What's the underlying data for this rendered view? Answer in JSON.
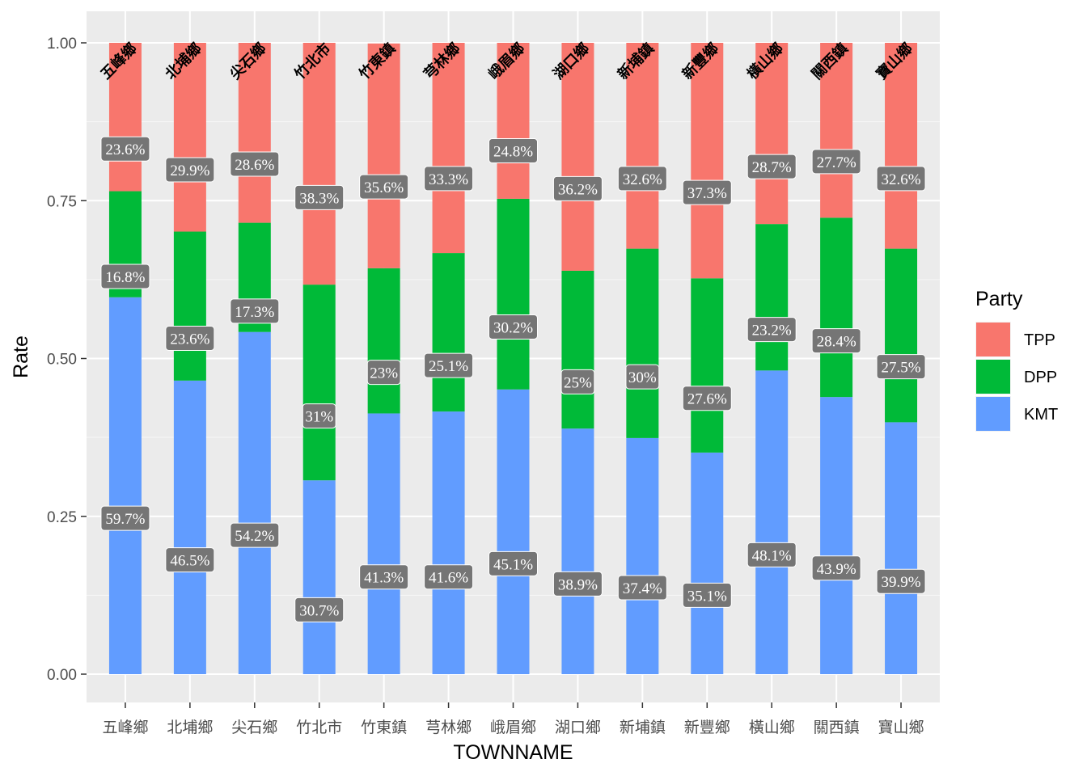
{
  "colors": {
    "panel_bg": "#ebebeb",
    "grid_major": "#ffffff",
    "label_box": "#757575",
    "TPP": "#f8766d",
    "DPP": "#00ba38",
    "KMT": "#619cff"
  },
  "chart_data": {
    "type": "bar",
    "stacked": true,
    "xlabel": "TOWNNAME",
    "ylabel": "Rate",
    "ylim": [
      0,
      1
    ],
    "yticks": [
      "0.00",
      "0.25",
      "0.50",
      "0.75",
      "1.00"
    ],
    "grid": true,
    "legend": {
      "title": "Party",
      "position": "right",
      "entries": [
        "TPP",
        "DPP",
        "KMT"
      ]
    },
    "categories": [
      "五峰鄉",
      "北埔鄉",
      "尖石鄉",
      "竹北市",
      "竹東鎮",
      "芎林鄉",
      "峨眉鄉",
      "湖口鄉",
      "新埔鎮",
      "新豐鄉",
      "橫山鄉",
      "關西鎮",
      "寶山鄉"
    ],
    "series": [
      {
        "name": "KMT",
        "values": [
          0.597,
          0.465,
          0.542,
          0.307,
          0.413,
          0.416,
          0.451,
          0.389,
          0.374,
          0.351,
          0.481,
          0.439,
          0.399
        ],
        "labels": [
          "59.7%",
          "46.5%",
          "54.2%",
          "30.7%",
          "41.3%",
          "41.6%",
          "45.1%",
          "38.9%",
          "37.4%",
          "35.1%",
          "48.1%",
          "43.9%",
          "39.9%"
        ]
      },
      {
        "name": "DPP",
        "values": [
          0.168,
          0.236,
          0.173,
          0.31,
          0.23,
          0.251,
          0.302,
          0.25,
          0.3,
          0.276,
          0.232,
          0.284,
          0.275
        ],
        "labels": [
          "16.8%",
          "23.6%",
          "17.3%",
          "31%",
          "23%",
          "25.1%",
          "30.2%",
          "25%",
          "30%",
          "27.6%",
          "23.2%",
          "28.4%",
          "27.5%"
        ]
      },
      {
        "name": "TPP",
        "values": [
          0.236,
          0.299,
          0.286,
          0.383,
          0.356,
          0.333,
          0.248,
          0.362,
          0.326,
          0.373,
          0.287,
          0.277,
          0.326
        ],
        "labels": [
          "23.6%",
          "29.9%",
          "28.6%",
          "38.3%",
          "35.6%",
          "33.3%",
          "24.8%",
          "36.2%",
          "32.6%",
          "37.3%",
          "28.7%",
          "27.7%",
          "32.6%"
        ]
      }
    ],
    "top_labels": [
      "五峰鄉",
      "北埔鄉",
      "尖石鄉",
      "竹北市",
      "竹東鎮",
      "芎林鄉",
      "峨眉鄉",
      "湖口鄉",
      "新埔鎮",
      "新豐鄉",
      "橫山鄉",
      "關西鎮",
      "寶山鄉"
    ],
    "label_y": [
      [
        0.247,
        0.63,
        0.832
      ],
      [
        0.181,
        0.532,
        0.799
      ],
      [
        0.22,
        0.575,
        0.808
      ],
      [
        0.102,
        0.409,
        0.755
      ],
      [
        0.154,
        0.478,
        0.772
      ],
      [
        0.154,
        0.489,
        0.785
      ],
      [
        0.175,
        0.55,
        0.829
      ],
      [
        0.143,
        0.463,
        0.769
      ],
      [
        0.137,
        0.471,
        0.785
      ],
      [
        0.125,
        0.437,
        0.763
      ],
      [
        0.189,
        0.546,
        0.804
      ],
      [
        0.168,
        0.528,
        0.812
      ],
      [
        0.147,
        0.487,
        0.785
      ]
    ]
  }
}
